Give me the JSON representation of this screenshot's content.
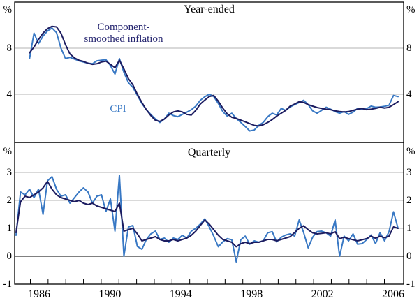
{
  "figure": {
    "top_panel": {
      "title": "Year-ended",
      "unit": "%",
      "yticks": [
        "8",
        "4"
      ],
      "annotations": {
        "smoothed_line1": "Component-",
        "smoothed_line2": "smoothed inflation",
        "cpi": "CPI"
      }
    },
    "bottom_panel": {
      "title": "Quarterly",
      "unit": "%",
      "yticks": [
        "3",
        "2",
        "1",
        "0",
        "-1"
      ]
    },
    "x_axis": {
      "labels": [
        "1986",
        "1990",
        "1994",
        "1998",
        "2002",
        "2006"
      ]
    }
  },
  "colors": {
    "cpi": "#3878c4",
    "smoothed": "#1c1c60",
    "annotation_smoothed": "#262670",
    "annotation_cpi": "#3878c4",
    "grid": "#b3b3b3",
    "axis": "#000000"
  },
  "chart_data": [
    {
      "id": "year-ended",
      "type": "line",
      "title": "Year-ended",
      "ylabel": "%",
      "ylim": [
        0,
        12
      ],
      "yticks": [
        4,
        8
      ],
      "grid": true,
      "frequency": "quarterly",
      "start": "1985-Q4",
      "x_labels": [
        "1986",
        "1990",
        "1994",
        "1998",
        "2002",
        "2006"
      ],
      "series": [
        {
          "name": "CPI",
          "values": [
            7.1,
            9.3,
            8.4,
            9.05,
            9.5,
            9.75,
            9.35,
            8.0,
            7.1,
            7.2,
            7.05,
            6.9,
            6.8,
            6.7,
            6.65,
            6.9,
            6.95,
            7.0,
            6.5,
            5.75,
            7.1,
            5.9,
            5.0,
            4.6,
            3.9,
            3.2,
            2.65,
            2.25,
            1.85,
            1.55,
            1.85,
            2.35,
            2.15,
            2.05,
            2.25,
            2.45,
            2.66,
            2.97,
            3.48,
            3.79,
            4.0,
            3.8,
            3.2,
            2.5,
            2.1,
            2.35,
            1.9,
            1.55,
            1.2,
            0.82,
            0.9,
            1.3,
            1.55,
            2.05,
            2.35,
            2.2,
            2.77,
            2.6,
            2.9,
            3.1,
            3.28,
            3.48,
            3.1,
            2.56,
            2.35,
            2.6,
            2.87,
            2.7,
            2.5,
            2.35,
            2.5,
            2.25,
            2.45,
            2.77,
            2.66,
            2.75,
            2.97,
            2.87,
            2.9,
            2.95,
            3.05,
            3.9,
            3.8
          ]
        },
        {
          "name": "Component-smoothed inflation",
          "values": [
            7.6,
            8.1,
            8.75,
            9.3,
            9.7,
            9.9,
            9.85,
            9.3,
            8.3,
            7.5,
            7.15,
            6.95,
            6.85,
            6.7,
            6.6,
            6.65,
            6.8,
            6.87,
            6.6,
            6.3,
            6.95,
            6.2,
            5.35,
            4.82,
            4.0,
            3.28,
            2.66,
            2.15,
            1.74,
            1.64,
            1.85,
            2.2,
            2.46,
            2.56,
            2.46,
            2.25,
            2.2,
            2.6,
            3.15,
            3.5,
            3.8,
            3.9,
            3.4,
            2.8,
            2.3,
            2.0,
            1.9,
            1.75,
            1.6,
            1.45,
            1.3,
            1.25,
            1.35,
            1.55,
            1.8,
            2.1,
            2.35,
            2.6,
            2.97,
            3.15,
            3.35,
            3.3,
            3.1,
            2.97,
            2.85,
            2.77,
            2.7,
            2.66,
            2.56,
            2.5,
            2.46,
            2.5,
            2.6,
            2.7,
            2.77,
            2.66,
            2.7,
            2.77,
            2.87,
            2.8,
            2.87,
            3.1,
            3.35
          ]
        }
      ]
    },
    {
      "id": "quarterly",
      "type": "line",
      "title": "Quarterly",
      "ylabel": "%",
      "ylim": [
        -1,
        4
      ],
      "yticks": [
        -1,
        0,
        1,
        2,
        3
      ],
      "grid": true,
      "frequency": "quarterly",
      "start": "1985-Q1",
      "x_labels": [
        "1986",
        "1990",
        "1994",
        "1998",
        "2002",
        "2006"
      ],
      "series": [
        {
          "name": "CPI",
          "values": [
            0.75,
            2.3,
            2.2,
            2.4,
            2.1,
            2.4,
            1.5,
            2.7,
            2.85,
            2.4,
            2.15,
            2.2,
            1.9,
            2.1,
            2.3,
            2.45,
            2.3,
            1.9,
            2.15,
            2.2,
            1.6,
            2.05,
            0.9,
            2.9,
            0.0,
            1.05,
            1.1,
            0.35,
            0.25,
            0.6,
            0.8,
            0.9,
            0.6,
            0.65,
            0.5,
            0.65,
            0.6,
            0.75,
            0.65,
            0.9,
            1.0,
            1.15,
            1.34,
            1.05,
            0.72,
            0.34,
            0.51,
            0.63,
            0.59,
            -0.2,
            0.59,
            0.72,
            0.43,
            0.55,
            0.5,
            0.55,
            0.84,
            0.88,
            0.51,
            0.68,
            0.76,
            0.8,
            0.72,
            1.3,
            0.85,
            0.3,
            0.68,
            0.88,
            0.9,
            0.84,
            0.72,
            1.3,
            0.0,
            0.72,
            0.55,
            0.8,
            0.43,
            0.45,
            0.59,
            0.76,
            0.45,
            0.84,
            0.55,
            0.88,
            1.59,
            1.0
          ]
        },
        {
          "name": "Component-smoothed inflation",
          "values": [
            0.85,
            1.95,
            2.15,
            2.1,
            2.2,
            2.3,
            2.45,
            2.68,
            2.4,
            2.2,
            2.1,
            2.05,
            2.0,
            1.95,
            2.0,
            1.9,
            1.85,
            1.9,
            1.8,
            1.75,
            1.7,
            1.65,
            1.6,
            1.9,
            0.9,
            0.95,
            1.0,
            0.8,
            0.55,
            0.6,
            0.65,
            0.7,
            0.6,
            0.55,
            0.55,
            0.6,
            0.55,
            0.6,
            0.65,
            0.75,
            0.9,
            1.1,
            1.3,
            1.15,
            0.95,
            0.75,
            0.6,
            0.55,
            0.5,
            0.34,
            0.45,
            0.5,
            0.45,
            0.5,
            0.5,
            0.55,
            0.6,
            0.6,
            0.55,
            0.6,
            0.65,
            0.7,
            0.85,
            1.0,
            1.09,
            0.95,
            0.84,
            0.8,
            0.82,
            0.84,
            0.8,
            0.88,
            0.63,
            0.68,
            0.63,
            0.59,
            0.55,
            0.59,
            0.63,
            0.72,
            0.64,
            0.72,
            0.66,
            0.72,
            1.05,
            1.0
          ]
        }
      ]
    }
  ]
}
